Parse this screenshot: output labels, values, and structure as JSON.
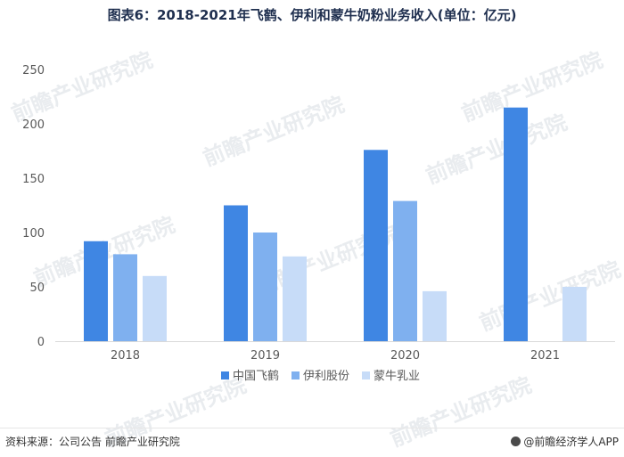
{
  "title": "图表6：2018-2021年飞鹤、伊利和蒙牛奶粉业务收入(单位：亿元)",
  "footer": {
    "source": "资料来源：公司公告 前瞻产业研究院",
    "brand": "@前瞻经济学人APP"
  },
  "watermark_text": "前瞻产业研究院",
  "chart_data": {
    "type": "bar",
    "title": "图表6：2018-2021年飞鹤、伊利和蒙牛奶粉业务收入(单位：亿元)",
    "categories": [
      "2018",
      "2019",
      "2020",
      "2021"
    ],
    "series": [
      {
        "name": "中国飞鹤",
        "color": "#3f86e3",
        "values": [
          92,
          125,
          176,
          215
        ]
      },
      {
        "name": "伊利股份",
        "color": "#7fb0ef",
        "values": [
          80,
          100,
          129,
          null
        ]
      },
      {
        "name": "蒙牛乳业",
        "color": "#c7dcf8",
        "values": [
          60,
          78,
          46,
          50
        ]
      }
    ],
    "ylim": [
      0,
      250
    ],
    "yticks": [
      0,
      50,
      100,
      150,
      200,
      250
    ],
    "grid": false,
    "legend": "bottom"
  }
}
